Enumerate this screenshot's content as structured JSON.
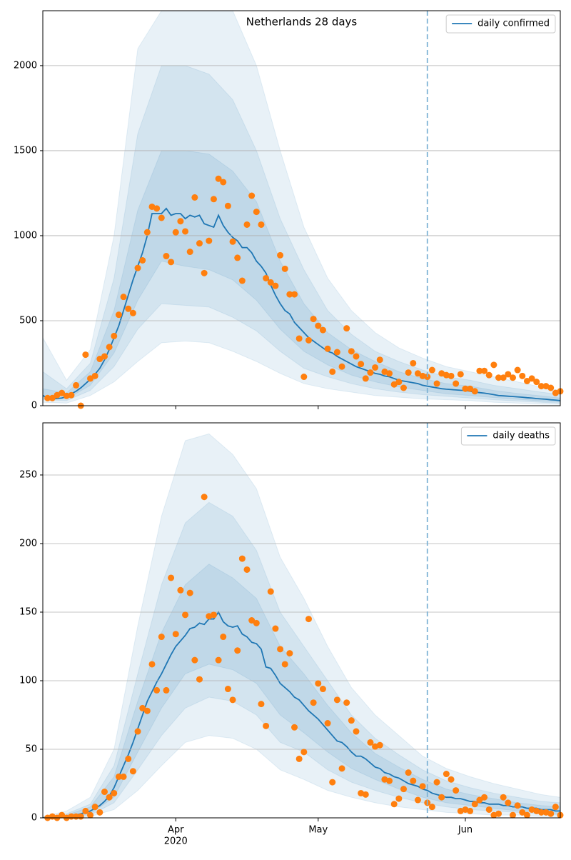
{
  "chart_data": [
    {
      "type": "line",
      "title": "Netherlands 28 days",
      "legend": "upper right",
      "grid": true,
      "xlim": [
        0,
        109
      ],
      "ylim": [
        0,
        2323
      ],
      "yticks": [
        0,
        500,
        1000,
        1500,
        2000
      ],
      "xticks": [
        28,
        58,
        89
      ],
      "vline_x": 81,
      "vline_color": "#7fb3d5",
      "x": [
        0,
        1,
        2,
        3,
        4,
        5,
        6,
        7,
        8,
        9,
        10,
        11,
        12,
        13,
        14,
        15,
        16,
        17,
        18,
        19,
        20,
        21,
        22,
        23,
        24,
        25,
        26,
        27,
        28,
        29,
        30,
        31,
        32,
        33,
        34,
        35,
        36,
        37,
        38,
        39,
        40,
        41,
        42,
        43,
        44,
        45,
        46,
        47,
        48,
        49,
        50,
        51,
        52,
        53,
        54,
        55,
        56,
        57,
        58,
        59,
        60,
        61,
        62,
        63,
        64,
        65,
        66,
        67,
        68,
        69,
        70,
        71,
        72,
        73,
        74,
        75,
        76,
        77,
        78,
        79,
        80,
        81,
        82,
        83,
        84,
        85,
        86,
        87,
        88,
        89,
        90,
        91,
        92,
        93,
        94,
        95,
        96,
        97,
        98,
        99,
        100,
        101,
        102,
        103,
        104,
        105,
        106,
        107,
        108,
        109
      ],
      "series": [
        {
          "name": "daily confirmed",
          "color": "#1f77b4",
          "values": [
            60,
            45,
            40,
            42,
            45,
            55,
            70,
            85,
            105,
            130,
            155,
            185,
            220,
            270,
            330,
            400,
            470,
            560,
            650,
            740,
            820,
            900,
            1000,
            1130,
            1130,
            1130,
            1160,
            1120,
            1130,
            1130,
            1100,
            1120,
            1110,
            1120,
            1070,
            1060,
            1050,
            1120,
            1060,
            1020,
            990,
            970,
            930,
            930,
            900,
            850,
            820,
            780,
            710,
            650,
            600,
            560,
            540,
            490,
            460,
            430,
            400,
            380,
            360,
            340,
            320,
            310,
            290,
            275,
            260,
            245,
            230,
            220,
            210,
            200,
            190,
            185,
            175,
            170,
            160,
            150,
            145,
            140,
            135,
            130,
            120,
            115,
            110,
            105,
            100,
            97,
            95,
            93,
            91,
            90,
            85,
            80,
            77,
            74,
            70,
            65,
            60,
            58,
            56,
            54,
            52,
            50,
            47,
            45,
            42,
            40,
            38,
            35,
            33,
            30
          ]
        }
      ],
      "observed": {
        "color": "#ff7f0e",
        "values": [
          null,
          45,
          45,
          62,
          75,
          58,
          62,
          120,
          0,
          300,
          160,
          175,
          275,
          290,
          345,
          410,
          535,
          640,
          570,
          545,
          810,
          855,
          1020,
          1170,
          1160,
          1105,
          880,
          845,
          1020,
          1085,
          1025,
          905,
          1225,
          955,
          780,
          970,
          1215,
          1335,
          1315,
          1175,
          965,
          870,
          735,
          1065,
          1235,
          1140,
          1065,
          750,
          725,
          705,
          885,
          805,
          655,
          655,
          395,
          170,
          385,
          510,
          470,
          445,
          335,
          200,
          315,
          230,
          455,
          320,
          290,
          245,
          160,
          195,
          225,
          270,
          200,
          190,
          125,
          140,
          105,
          195,
          250,
          190,
          175,
          170,
          210,
          130,
          190,
          180,
          175,
          130,
          185,
          100,
          100,
          85,
          205,
          205,
          180,
          240,
          165,
          165,
          185,
          165,
          210,
          175,
          145,
          160,
          140,
          115,
          115,
          105,
          75,
          85
        ]
      },
      "band_x": [
        0,
        5,
        10,
        15,
        20,
        25,
        30,
        35,
        40,
        45,
        50,
        55,
        60,
        65,
        70,
        75,
        80,
        85,
        90,
        95,
        100,
        105,
        109
      ],
      "band_color": "#1f77b4",
      "band_opacity": 0.1,
      "bands": [
        {
          "lower": [
            20,
            15,
            60,
            140,
            260,
            370,
            380,
            370,
            320,
            260,
            190,
            130,
            100,
            80,
            60,
            50,
            40,
            35,
            30,
            20,
            15,
            10,
            8
          ],
          "upper": [
            400,
            150,
            330,
            1000,
            2100,
            2323,
            2323,
            2323,
            2323,
            2000,
            1500,
            1050,
            750,
            560,
            430,
            340,
            280,
            230,
            200,
            170,
            140,
            110,
            90
          ]
        },
        {
          "lower": [
            35,
            30,
            90,
            230,
            450,
            600,
            590,
            580,
            520,
            440,
            320,
            220,
            170,
            130,
            100,
            80,
            65,
            55,
            45,
            35,
            28,
            20,
            15
          ],
          "upper": [
            200,
            100,
            250,
            750,
            1600,
            2000,
            2000,
            1950,
            1800,
            1500,
            1100,
            800,
            560,
            420,
            320,
            260,
            210,
            170,
            150,
            120,
            100,
            80,
            65
          ]
        },
        {
          "lower": [
            45,
            40,
            120,
            310,
            620,
            850,
            820,
            800,
            740,
            620,
            450,
            320,
            240,
            180,
            140,
            110,
            90,
            70,
            60,
            48,
            38,
            28,
            22
          ],
          "upper": [
            100,
            75,
            200,
            560,
            1150,
            1500,
            1500,
            1480,
            1380,
            1200,
            850,
            600,
            430,
            330,
            260,
            200,
            160,
            130,
            115,
            90,
            72,
            58,
            45
          ]
        }
      ]
    },
    {
      "type": "line",
      "legend": "upper right",
      "grid": true,
      "xlim": [
        0,
        109
      ],
      "ylim": [
        0,
        288
      ],
      "yticks": [
        0,
        50,
        100,
        150,
        200,
        250
      ],
      "xticks": [
        {
          "value": 28,
          "label": "Apr"
        },
        {
          "value": 58,
          "label": "May"
        },
        {
          "value": 89,
          "label": "Jun"
        }
      ],
      "year_label": "2020",
      "vline_x": 81,
      "vline_color": "#7fb3d5",
      "x": [
        0,
        1,
        2,
        3,
        4,
        5,
        6,
        7,
        8,
        9,
        10,
        11,
        12,
        13,
        14,
        15,
        16,
        17,
        18,
        19,
        20,
        21,
        22,
        23,
        24,
        25,
        26,
        27,
        28,
        29,
        30,
        31,
        32,
        33,
        34,
        35,
        36,
        37,
        38,
        39,
        40,
        41,
        42,
        43,
        44,
        45,
        46,
        47,
        48,
        49,
        50,
        51,
        52,
        53,
        54,
        55,
        56,
        57,
        58,
        59,
        60,
        61,
        62,
        63,
        64,
        65,
        66,
        67,
        68,
        69,
        70,
        71,
        72,
        73,
        74,
        75,
        76,
        77,
        78,
        79,
        80,
        81,
        82,
        83,
        84,
        85,
        86,
        87,
        88,
        89,
        90,
        91,
        92,
        93,
        94,
        95,
        96,
        97,
        98,
        99,
        100,
        101,
        102,
        103,
        104,
        105,
        106,
        107,
        108,
        109
      ],
      "series": [
        {
          "name": "daily deaths",
          "color": "#1f77b4",
          "values": [
            0,
            0,
            0,
            0.5,
            0.5,
            1,
            1.5,
            2,
            3,
            4,
            5,
            7,
            9,
            12,
            16,
            22,
            30,
            38,
            46,
            55,
            65,
            75,
            85,
            92,
            99,
            105,
            112,
            119,
            125,
            129,
            133,
            138,
            139,
            142,
            141,
            145,
            145,
            150,
            143,
            140,
            139,
            140,
            134,
            132,
            128,
            127,
            123,
            110,
            109,
            104,
            98,
            95,
            92,
            88,
            86,
            82,
            78,
            75,
            72,
            68,
            64,
            60,
            56,
            55,
            52,
            48,
            45,
            45,
            43,
            40,
            37,
            36,
            33,
            32,
            30,
            29,
            27,
            25,
            24,
            23,
            21,
            20,
            18,
            17,
            16,
            15,
            15,
            14,
            14,
            13,
            12,
            12,
            11,
            11,
            10,
            10,
            10,
            9,
            9,
            8,
            8,
            8,
            7,
            7,
            7,
            6,
            6,
            6,
            5,
            5
          ]
        }
      ],
      "observed": {
        "color": "#ff7f0e",
        "values": [
          null,
          0,
          1,
          0,
          2,
          0,
          1,
          1,
          1,
          5,
          2,
          8,
          4,
          19,
          15,
          18,
          30,
          30,
          43,
          34,
          63,
          80,
          78,
          112,
          93,
          132,
          93,
          175,
          134,
          166,
          148,
          164,
          115,
          101,
          234,
          147,
          148,
          115,
          132,
          94,
          86,
          122,
          189,
          181,
          144,
          142,
          83,
          67,
          165,
          138,
          123,
          112,
          120,
          66,
          43,
          48,
          145,
          84,
          98,
          94,
          69,
          26,
          86,
          36,
          84,
          71,
          63,
          18,
          17,
          55,
          52,
          53,
          28,
          27,
          10,
          14,
          21,
          33,
          27,
          13,
          23,
          11,
          8,
          26,
          15,
          32,
          28,
          20,
          5,
          6,
          5,
          10,
          13,
          15,
          6,
          2,
          3,
          15,
          11,
          2,
          9,
          4,
          2,
          6,
          5,
          4,
          4,
          3,
          8,
          2
        ]
      },
      "band_x": [
        0,
        5,
        10,
        15,
        20,
        25,
        30,
        35,
        40,
        45,
        50,
        55,
        60,
        65,
        70,
        75,
        80,
        85,
        90,
        95,
        100,
        105,
        109
      ],
      "band_color": "#1f77b4",
      "band_opacity": 0.1,
      "bands": [
        {
          "lower": [
            0,
            0,
            1,
            6,
            20,
            38,
            55,
            60,
            58,
            50,
            35,
            28,
            20,
            15,
            11,
            8,
            6,
            4,
            3,
            2,
            2,
            1,
            1
          ],
          "upper": [
            1,
            5,
            15,
            50,
            140,
            220,
            275,
            280,
            265,
            240,
            190,
            160,
            125,
            95,
            75,
            60,
            45,
            36,
            30,
            25,
            21,
            17,
            15
          ]
        },
        {
          "lower": [
            0,
            0.3,
            2,
            11,
            35,
            60,
            80,
            88,
            85,
            75,
            55,
            48,
            35,
            26,
            20,
            15,
            11,
            8,
            6,
            5,
            4,
            3,
            2
          ],
          "upper": [
            0.5,
            3,
            10,
            38,
            105,
            170,
            215,
            230,
            220,
            195,
            150,
            125,
            100,
            75,
            58,
            46,
            35,
            27,
            22,
            18,
            15,
            12,
            11
          ]
        },
        {
          "lower": [
            0,
            0.6,
            3,
            15,
            48,
            80,
            105,
            112,
            108,
            98,
            75,
            62,
            48,
            36,
            28,
            21,
            15,
            11,
            9,
            7,
            5,
            4,
            3
          ],
          "upper": [
            0.3,
            2,
            8,
            30,
            85,
            135,
            170,
            185,
            175,
            160,
            125,
            105,
            82,
            62,
            47,
            37,
            28,
            21,
            17,
            14,
            11,
            9,
            8
          ]
        }
      ]
    }
  ]
}
